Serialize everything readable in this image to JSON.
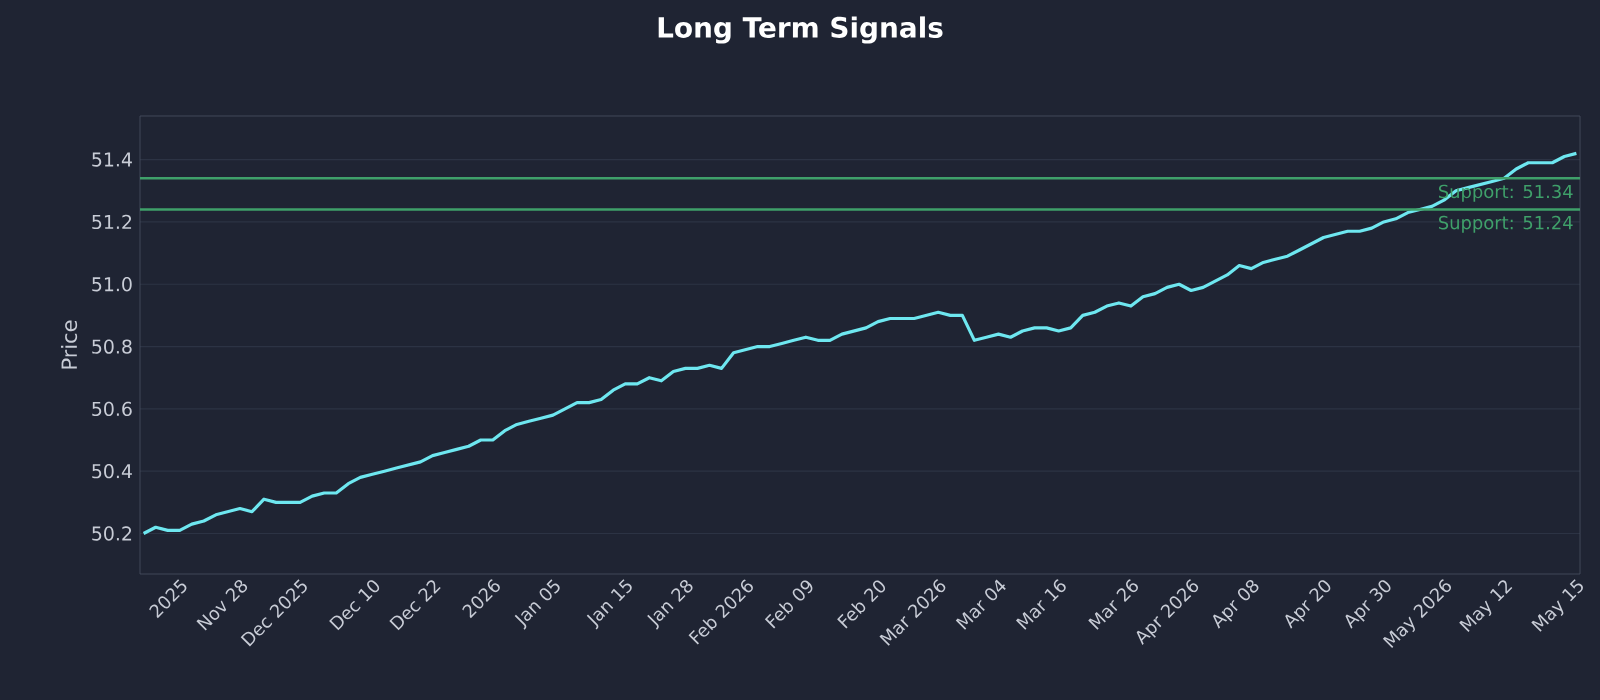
{
  "chart_data": {
    "type": "line",
    "title": "Long Term Signals",
    "ylabel": "Price",
    "categories": [
      null,
      null,
      null,
      "2025",
      null,
      null,
      null,
      null,
      "Nov 28",
      null,
      null,
      null,
      null,
      "Dec 2025",
      null,
      null,
      null,
      null,
      null,
      "Dec 10",
      null,
      null,
      null,
      null,
      "Dec 22",
      null,
      null,
      null,
      null,
      "2026",
      null,
      null,
      null,
      null,
      "Jan 05",
      null,
      null,
      null,
      null,
      null,
      "Jan 15",
      null,
      null,
      null,
      null,
      "Jan 28",
      null,
      null,
      null,
      null,
      "Feb 2026",
      null,
      null,
      null,
      null,
      "Feb 09",
      null,
      null,
      null,
      null,
      null,
      "Feb 20",
      null,
      null,
      null,
      null,
      "Mar 2026",
      null,
      null,
      null,
      null,
      "Mar 04",
      null,
      null,
      null,
      null,
      "Mar 16",
      null,
      null,
      null,
      null,
      null,
      "Mar 26",
      null,
      null,
      null,
      null,
      "Apr 2026",
      null,
      null,
      null,
      null,
      "Apr 08",
      null,
      null,
      null,
      null,
      null,
      "Apr 20",
      null,
      null,
      null,
      null,
      "Apr 30",
      null,
      null,
      null,
      null,
      "May 2026",
      null,
      null,
      null,
      null,
      "May 12",
      null,
      null,
      null,
      null,
      null,
      "May 15"
    ],
    "series": [
      {
        "color": "#6ee7f0",
        "values": [
          50.2,
          50.22,
          50.21,
          50.21,
          50.23,
          50.24,
          50.26,
          50.27,
          50.28,
          50.27,
          50.31,
          50.3,
          50.3,
          50.3,
          50.32,
          50.33,
          50.33,
          50.36,
          50.38,
          50.39,
          50.4,
          50.41,
          50.42,
          50.43,
          50.45,
          50.46,
          50.47,
          50.48,
          50.5,
          50.5,
          50.53,
          50.55,
          50.56,
          50.57,
          50.58,
          50.6,
          50.62,
          50.62,
          50.63,
          50.66,
          50.68,
          50.68,
          50.7,
          50.69,
          50.72,
          50.73,
          50.73,
          50.74,
          50.73,
          50.78,
          50.79,
          50.8,
          50.8,
          50.81,
          50.82,
          50.83,
          50.82,
          50.82,
          50.84,
          50.85,
          50.86,
          50.88,
          50.89,
          50.89,
          50.89,
          50.9,
          50.91,
          50.9,
          50.9,
          50.82,
          50.83,
          50.84,
          50.83,
          50.85,
          50.86,
          50.86,
          50.85,
          50.86,
          50.9,
          50.91,
          50.93,
          50.94,
          50.93,
          50.96,
          50.97,
          50.99,
          51.0,
          50.98,
          50.99,
          51.01,
          51.03,
          51.06,
          51.05,
          51.07,
          51.08,
          51.09,
          51.11,
          51.13,
          51.15,
          51.16,
          51.17,
          51.17,
          51.18,
          51.2,
          51.21,
          51.23,
          51.24,
          51.25,
          51.27,
          51.3,
          51.31,
          51.32,
          51.33,
          51.34,
          51.37,
          51.39,
          51.39,
          51.39,
          51.41,
          51.42
        ]
      }
    ],
    "ylim": [
      50.07,
      51.54
    ],
    "yticks": [
      50.2,
      50.4,
      50.6,
      50.8,
      {
        "value": 51.0,
        "label": "51.0"
      },
      51.2,
      51.4
    ],
    "grid": "y",
    "ref_lines": [
      {
        "axis": "y",
        "value": 51.34,
        "label": "Support: 51.34",
        "color": "#3fa06a"
      },
      {
        "axis": "y",
        "value": 51.24,
        "label": "Support: 51.24",
        "color": "#3fa06a"
      }
    ]
  }
}
